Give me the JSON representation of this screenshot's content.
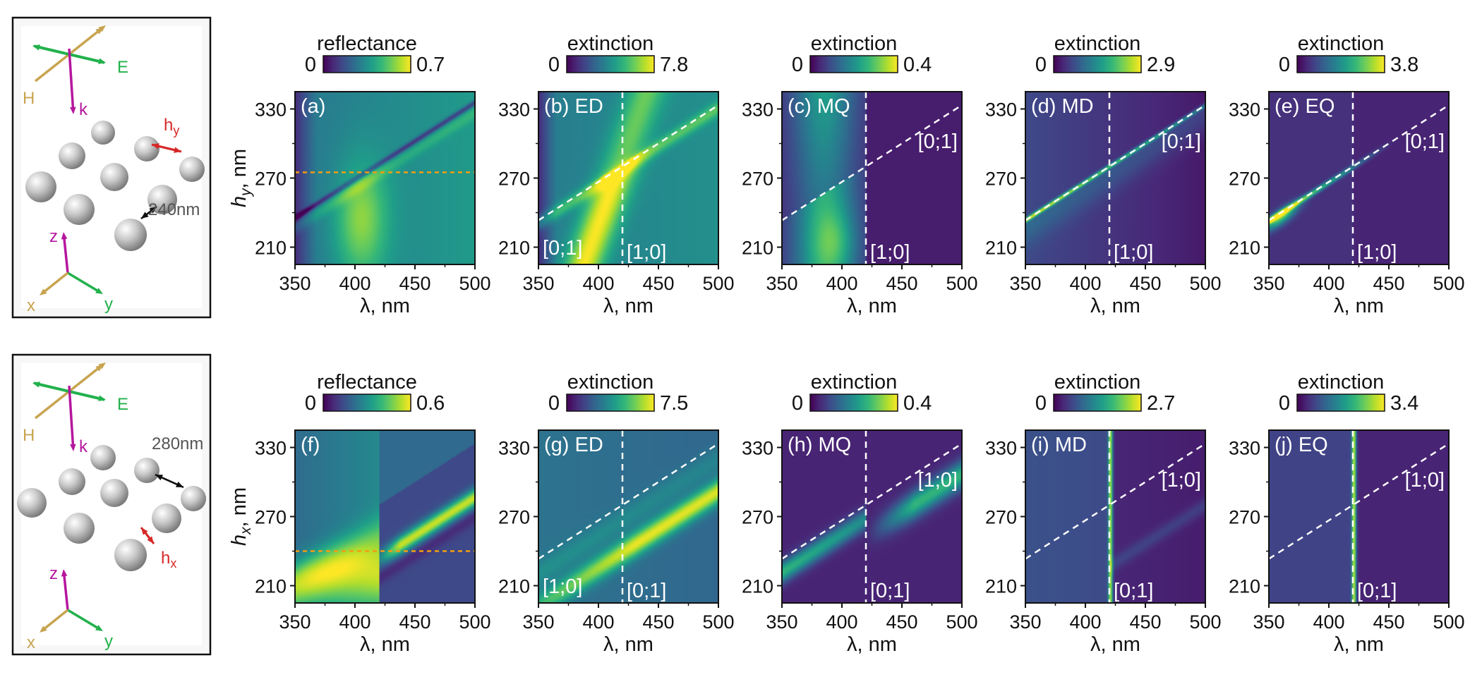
{
  "chart_data": [
    {
      "id": "a",
      "type": "heatmap",
      "kind": "reflectance",
      "label": "(a)",
      "mode": "",
      "cbar_title": "reflectance",
      "cbar_min": "0",
      "cbar_max": "0.7",
      "xlabel": "λ, nm",
      "ylabel": "hy, nm",
      "xlim": [
        350,
        500
      ],
      "ylim": [
        195,
        345
      ],
      "xticks": [
        "350",
        "400",
        "450",
        "500"
      ],
      "yticks": [
        "210",
        "270",
        "330"
      ],
      "orders": [],
      "cutline_h": 275
    },
    {
      "id": "b",
      "type": "heatmap",
      "kind": "ED",
      "label": "(b) ED",
      "mode": "ED",
      "cbar_title": "extinction",
      "cbar_min": "0",
      "cbar_max": "7.8",
      "xlabel": "λ, nm",
      "ylabel": "",
      "xlim": [
        350,
        500
      ],
      "ylim": [
        195,
        345
      ],
      "xticks": [
        "350",
        "400",
        "450",
        "500"
      ],
      "yticks": [
        "210",
        "270",
        "330"
      ],
      "orders": [
        "[0;1]",
        "[1;0]"
      ],
      "order_pos": [
        "bottom-left",
        "bottom-center"
      ]
    },
    {
      "id": "c",
      "type": "heatmap",
      "kind": "MQ",
      "label": "(c) MQ",
      "mode": "MQ",
      "cbar_title": "extinction",
      "cbar_min": "0",
      "cbar_max": "0.4",
      "xlabel": "λ, nm",
      "ylabel": "",
      "xlim": [
        350,
        500
      ],
      "ylim": [
        195,
        345
      ],
      "xticks": [
        "350",
        "400",
        "450",
        "500"
      ],
      "yticks": [
        "210",
        "270",
        "330"
      ],
      "orders": [
        "[0;1]",
        "[1;0]"
      ],
      "order_pos": [
        "upper-right",
        "bottom-center"
      ]
    },
    {
      "id": "d",
      "type": "heatmap",
      "kind": "MD",
      "label": "(d) MD",
      "mode": "MD",
      "cbar_title": "extinction",
      "cbar_min": "0",
      "cbar_max": "2.9",
      "xlabel": "λ, nm",
      "ylabel": "",
      "xlim": [
        350,
        500
      ],
      "ylim": [
        195,
        345
      ],
      "xticks": [
        "350",
        "400",
        "450",
        "500"
      ],
      "yticks": [
        "210",
        "270",
        "330"
      ],
      "orders": [
        "[0;1]",
        "[1;0]"
      ],
      "order_pos": [
        "upper-right",
        "bottom-center"
      ]
    },
    {
      "id": "e",
      "type": "heatmap",
      "kind": "EQ",
      "label": "(e) EQ",
      "mode": "EQ",
      "cbar_title": "extinction",
      "cbar_min": "0",
      "cbar_max": "3.8",
      "xlabel": "λ, nm",
      "ylabel": "",
      "xlim": [
        350,
        500
      ],
      "ylim": [
        195,
        345
      ],
      "xticks": [
        "350",
        "400",
        "450",
        "500"
      ],
      "yticks": [
        "210",
        "270",
        "330"
      ],
      "orders": [
        "[0;1]",
        "[1;0]"
      ],
      "order_pos": [
        "upper-right",
        "bottom-center"
      ]
    },
    {
      "id": "f",
      "type": "heatmap",
      "kind": "reflectance2",
      "label": "(f)",
      "mode": "",
      "cbar_title": "reflectance",
      "cbar_min": "0",
      "cbar_max": "0.6",
      "xlabel": "λ, nm",
      "ylabel": "hx, nm",
      "xlim": [
        350,
        500
      ],
      "ylim": [
        195,
        345
      ],
      "xticks": [
        "350",
        "400",
        "450",
        "500"
      ],
      "yticks": [
        "210",
        "270",
        "330"
      ],
      "orders": [],
      "cutline_h": 240
    },
    {
      "id": "g",
      "type": "heatmap",
      "kind": "ED2",
      "label": "(g) ED",
      "mode": "ED",
      "cbar_title": "extinction",
      "cbar_min": "0",
      "cbar_max": "7.5",
      "xlabel": "λ, nm",
      "ylabel": "",
      "xlim": [
        350,
        500
      ],
      "ylim": [
        195,
        345
      ],
      "xticks": [
        "350",
        "400",
        "450",
        "500"
      ],
      "yticks": [
        "210",
        "270",
        "330"
      ],
      "orders": [
        "[1;0]",
        "[0;1]"
      ],
      "order_pos": [
        "bottom-left",
        "bottom-center"
      ]
    },
    {
      "id": "h",
      "type": "heatmap",
      "kind": "MQ2",
      "label": "(h) MQ",
      "mode": "MQ",
      "cbar_title": "extinction",
      "cbar_min": "0",
      "cbar_max": "0.4",
      "xlabel": "λ, nm",
      "ylabel": "",
      "xlim": [
        350,
        500
      ],
      "ylim": [
        195,
        345
      ],
      "xticks": [
        "350",
        "400",
        "450",
        "500"
      ],
      "yticks": [
        "210",
        "270",
        "330"
      ],
      "orders": [
        "[1;0]",
        "[0;1]"
      ],
      "order_pos": [
        "upper-right",
        "bottom-center"
      ]
    },
    {
      "id": "i",
      "type": "heatmap",
      "kind": "MD2",
      "label": "(i) MD",
      "mode": "MD",
      "cbar_title": "extinction",
      "cbar_min": "0",
      "cbar_max": "2.7",
      "xlabel": "λ, nm",
      "ylabel": "",
      "xlim": [
        350,
        500
      ],
      "ylim": [
        195,
        345
      ],
      "xticks": [
        "350",
        "400",
        "450",
        "500"
      ],
      "yticks": [
        "210",
        "270",
        "330"
      ],
      "orders": [
        "[1;0]",
        "[0;1]"
      ],
      "order_pos": [
        "upper-right",
        "bottom-center"
      ]
    },
    {
      "id": "j",
      "type": "heatmap",
      "kind": "EQ2",
      "label": "(j) EQ",
      "mode": "EQ",
      "cbar_title": "extinction",
      "cbar_min": "0",
      "cbar_max": "3.4",
      "xlabel": "λ, nm",
      "ylabel": "",
      "xlim": [
        350,
        500
      ],
      "ylim": [
        195,
        345
      ],
      "xticks": [
        "350",
        "400",
        "450",
        "500"
      ],
      "yticks": [
        "210",
        "270",
        "330"
      ],
      "orders": [
        "[1;0]",
        "[0;1]"
      ],
      "order_pos": [
        "upper-right",
        "bottom-center"
      ]
    }
  ],
  "diagrams": [
    {
      "E": "E",
      "H": "H",
      "k": "k",
      "spacing": "240nm",
      "h_label": "h",
      "h_sub": "y",
      "x": "x",
      "y": "y",
      "z": "z"
    },
    {
      "E": "E",
      "H": "H",
      "k": "k",
      "spacing": "280nm",
      "h_label": "h",
      "h_sub": "x",
      "x": "x",
      "y": "y",
      "z": "z"
    }
  ],
  "rayleigh_anomaly_nm": 420,
  "colors": {
    "dashed_white": "#ffffff",
    "cutline": "#f39c12",
    "E_arrow": "#22b14c",
    "H_arrow": "#c8a450",
    "k_arrow": "#b5179e",
    "h_arrow": "#d62828",
    "frame": "#111111"
  }
}
